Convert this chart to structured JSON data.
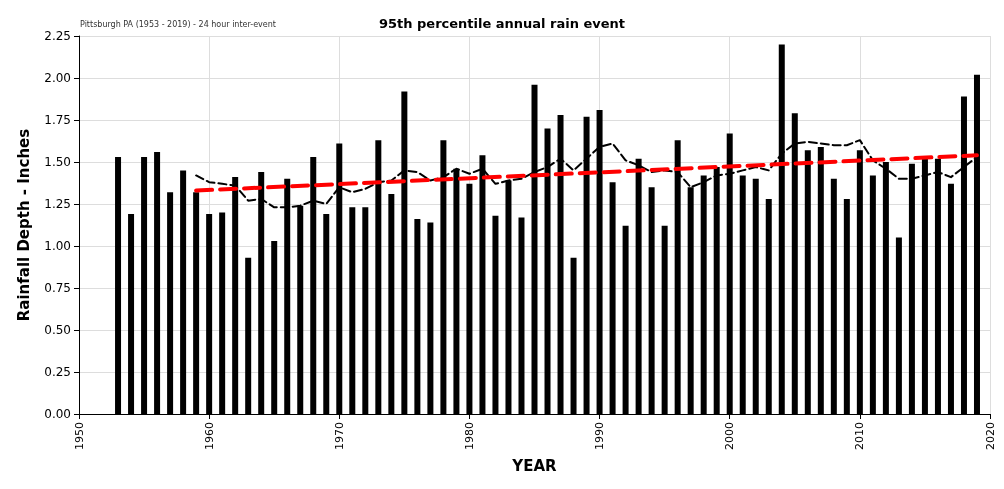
{
  "chart_data": {
    "type": "bar",
    "title": "95th percentile annual rain event",
    "xlabel": "YEAR",
    "ylabel": "Rainfall Depth - Inches",
    "annotations": [
      "Pittsburgh PA (1953 - 2019) - 24 hour inter-event"
    ],
    "x": [
      1953,
      1954,
      1955,
      1956,
      1957,
      1958,
      1959,
      1960,
      1961,
      1962,
      1963,
      1964,
      1965,
      1966,
      1967,
      1968,
      1969,
      1970,
      1971,
      1972,
      1973,
      1974,
      1975,
      1976,
      1977,
      1978,
      1979,
      1980,
      1981,
      1982,
      1983,
      1984,
      1985,
      1986,
      1987,
      1988,
      1989,
      1990,
      1991,
      1992,
      1993,
      1994,
      1995,
      1996,
      1997,
      1998,
      1999,
      2000,
      2001,
      2002,
      2003,
      2004,
      2005,
      2006,
      2007,
      2008,
      2009,
      2010,
      2011,
      2012,
      2013,
      2014,
      2015,
      2016,
      2017,
      2018,
      2019
    ],
    "series": [
      {
        "color": "#000000",
        "values": [
          1.53,
          1.19,
          1.53,
          1.56,
          1.32,
          1.45,
          1.32,
          1.19,
          1.2,
          1.41,
          0.93,
          1.44,
          1.03,
          1.4,
          1.24,
          1.53,
          1.19,
          1.61,
          1.23,
          1.23,
          1.63,
          1.31,
          1.92,
          1.16,
          1.14,
          1.63,
          1.46,
          1.37,
          1.54,
          1.18,
          1.39,
          1.17,
          1.96,
          1.7,
          1.78,
          0.93,
          1.77,
          1.81,
          1.38,
          1.12,
          1.52,
          1.35,
          1.12,
          1.63,
          1.35,
          1.42,
          1.47,
          1.67,
          1.42,
          1.4,
          1.28,
          2.2,
          1.79,
          1.57,
          1.59,
          1.4,
          1.28,
          1.57,
          1.42,
          1.5,
          1.05,
          1.49,
          1.52,
          1.52,
          1.37,
          1.89,
          2.02
        ]
      },
      {
        "type": "line",
        "color": "#000000",
        "line_style": "dashed",
        "x": [
          1959,
          1960,
          1961,
          1962,
          1963,
          1964,
          1965,
          1966,
          1967,
          1968,
          1969,
          1970,
          1971,
          1972,
          1973,
          1974,
          1975,
          1976,
          1977,
          1978,
          1979,
          1980,
          1981,
          1982,
          1983,
          1984,
          1985,
          1986,
          1987,
          1988,
          1989,
          1990,
          1991,
          1992,
          1993,
          1994,
          1995,
          1996,
          1997,
          1998,
          1999,
          2000,
          2001,
          2002,
          2003,
          2004,
          2005,
          2006,
          2007,
          2008,
          2009,
          2010,
          2011,
          2012,
          2013,
          2014,
          2015,
          2016,
          2017,
          2018,
          2019
        ],
        "values": [
          1.42,
          1.38,
          1.37,
          1.36,
          1.27,
          1.28,
          1.23,
          1.23,
          1.24,
          1.27,
          1.25,
          1.35,
          1.32,
          1.34,
          1.38,
          1.39,
          1.45,
          1.44,
          1.39,
          1.41,
          1.46,
          1.43,
          1.46,
          1.37,
          1.39,
          1.4,
          1.44,
          1.47,
          1.52,
          1.45,
          1.52,
          1.59,
          1.61,
          1.51,
          1.48,
          1.44,
          1.45,
          1.44,
          1.35,
          1.38,
          1.42,
          1.43,
          1.45,
          1.47,
          1.45,
          1.55,
          1.61,
          1.62,
          1.61,
          1.6,
          1.6,
          1.63,
          1.51,
          1.46,
          1.4,
          1.4,
          1.42,
          1.44,
          1.41,
          1.47,
          1.53
        ]
      },
      {
        "type": "line",
        "color": "#ff0000",
        "line_style": "dashed",
        "x": [
          1959,
          2019
        ],
        "values": [
          1.33,
          1.54
        ]
      }
    ],
    "xlim": [
      1950,
      2020
    ],
    "xticks": [
      1950,
      1960,
      1970,
      1980,
      1990,
      2000,
      2010,
      2020
    ],
    "ylim": [
      0,
      2.25
    ],
    "yticks": [
      {
        "value": 0,
        "label": "0.00"
      },
      0.25,
      {
        "value": 0.5,
        "label": "0.50"
      },
      0.75,
      {
        "value": 1,
        "label": "1.00"
      },
      1.25,
      {
        "value": 1.5,
        "label": "1.50"
      },
      1.75,
      {
        "value": 2,
        "label": "2.00"
      },
      2.25
    ],
    "grid": true
  }
}
